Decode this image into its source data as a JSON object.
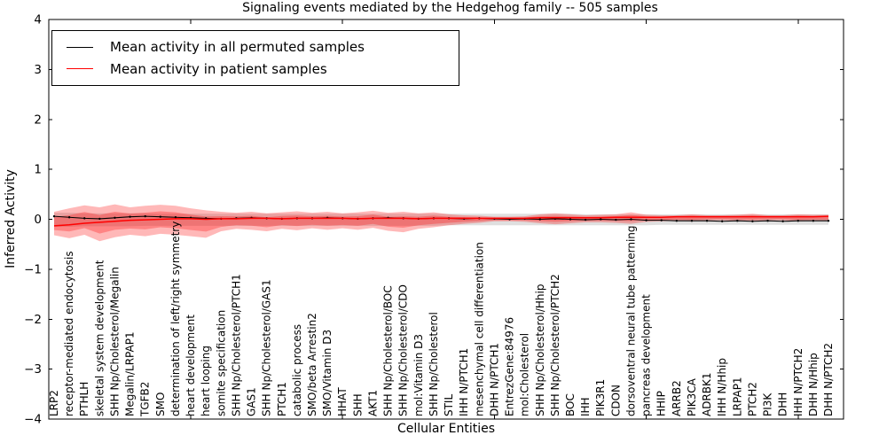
{
  "window": {
    "title": "Signaling events mediated by the Hedgehog family -- 505 samples"
  },
  "chart_data": {
    "type": "line",
    "title": "Signaling events mediated by the Hedgehog family -- 505 samples",
    "xlabel": "Cellular Entities",
    "ylabel": "Inferred Activity",
    "ylim": [
      -4,
      4
    ],
    "yticks": [
      4,
      3,
      2,
      1,
      0,
      -1,
      -2,
      -3,
      -4
    ],
    "xtick_indices": [
      9,
      19,
      29,
      39,
      49
    ],
    "grid": false,
    "legend_position": "upper left",
    "categories": [
      "LRP2",
      "receptor-mediated endocytosis",
      "PTHLH",
      "skeletal system development",
      "SHH Np/Cholesterol/Megalin",
      "Megalin/LRPAP1",
      "TGFB2",
      "SMO",
      "determination of left/right symmetry",
      "heart development",
      "heart looping",
      "somite specification",
      "SHH Np/Cholesterol/PTCH1",
      "GAS1",
      "SHH Np/Cholesterol/GAS1",
      "PTCH1",
      "catabolic process",
      "SMO/beta Arrestin2",
      "SMO/Vitamin D3",
      "HHAT",
      "SHH",
      "AKT1",
      "SHH Np/Cholesterol/BOC",
      "SHH Np/Cholesterol/CDO",
      "mol:Vitamin D3",
      "SHH Np/Cholesterol",
      "STIL",
      "IHH N/PTCH1",
      "mesenchymal cell differentiation",
      "DHH N/PTCH1",
      "EntrezGene:84976",
      "mol:Cholesterol",
      "SHH Np/Cholesterol/Hhip",
      "SHH Np/Cholesterol/PTCH2",
      "BOC",
      "IHH",
      "PIK3R1",
      "CDON",
      "dorsoventral neural tube patterning",
      "pancreas development",
      "HHIP",
      "ARRB2",
      "PIK3CA",
      "ADRBK1",
      "IHH N/Hhip",
      "LRPAP1",
      "PTCH2",
      "PI3K",
      "DHH",
      "IHH N/PTCH2",
      "DHH N/Hhip",
      "DHH N/PTCH2"
    ],
    "series": [
      {
        "id": "permuted-mean-line",
        "name": "Mean activity in all permuted samples",
        "color": "#000000",
        "marker": "dot",
        "values": [
          0.06,
          0.04,
          0.02,
          0.01,
          0.03,
          0.05,
          0.06,
          0.05,
          0.04,
          0.03,
          0.02,
          0.01,
          0.02,
          0.03,
          0.02,
          0.01,
          0.02,
          0.02,
          0.03,
          0.02,
          0.01,
          0.02,
          0.03,
          0.02,
          0.01,
          0.02,
          0.02,
          0.01,
          0.02,
          0.01,
          0.0,
          0.01,
          0.0,
          0.01,
          0.0,
          -0.01,
          0.0,
          -0.01,
          0.0,
          -0.02,
          -0.02,
          -0.03,
          -0.03,
          -0.03,
          -0.04,
          -0.03,
          -0.04,
          -0.03,
          -0.04,
          -0.03,
          -0.03,
          -0.03
        ]
      },
      {
        "id": "patient-mean-line",
        "name": "Mean activity in patient samples",
        "color": "#ff0000",
        "marker": null,
        "values": [
          -0.13,
          -0.11,
          -0.08,
          -0.06,
          -0.04,
          -0.02,
          -0.01,
          0.0,
          0.01,
          0.01,
          0.0,
          0.01,
          0.01,
          0.02,
          0.02,
          0.01,
          0.02,
          0.02,
          0.02,
          0.02,
          0.01,
          0.02,
          0.02,
          0.02,
          0.01,
          0.02,
          0.02,
          0.02,
          0.02,
          0.02,
          0.02,
          0.02,
          0.03,
          0.03,
          0.03,
          0.03,
          0.03,
          0.04,
          0.04,
          0.04,
          0.04,
          0.05,
          0.05,
          0.05,
          0.05,
          0.05,
          0.05,
          0.05,
          0.05,
          0.05,
          0.05,
          0.06
        ]
      }
    ],
    "bands": [
      {
        "name": "permuted-std-band",
        "color": "#808080",
        "alpha": 0.25,
        "layers": [
          1
        ],
        "upper": [
          0.13,
          0.13,
          0.12,
          0.12,
          0.12,
          0.12,
          0.12,
          0.11,
          0.11,
          0.11,
          0.11,
          0.11,
          0.11,
          0.11,
          0.11,
          0.11,
          0.11,
          0.11,
          0.11,
          0.11,
          0.11,
          0.11,
          0.11,
          0.11,
          0.11,
          0.11,
          0.11,
          0.11,
          0.11,
          0.11,
          0.11,
          0.11,
          0.11,
          0.11,
          0.11,
          0.1,
          0.1,
          0.1,
          0.1,
          0.1,
          0.1,
          0.1,
          0.1,
          0.1,
          0.1,
          0.1,
          0.1,
          0.1,
          0.1,
          0.1,
          0.1,
          0.1
        ],
        "lower": [
          -0.15,
          -0.15,
          -0.14,
          -0.14,
          -0.14,
          -0.14,
          -0.13,
          -0.13,
          -0.13,
          -0.13,
          -0.13,
          -0.13,
          -0.13,
          -0.13,
          -0.13,
          -0.13,
          -0.13,
          -0.13,
          -0.13,
          -0.13,
          -0.13,
          -0.13,
          -0.13,
          -0.13,
          -0.13,
          -0.13,
          -0.12,
          -0.12,
          -0.12,
          -0.12,
          -0.12,
          -0.12,
          -0.12,
          -0.12,
          -0.12,
          -0.12,
          -0.12,
          -0.12,
          -0.12,
          -0.12,
          -0.11,
          -0.11,
          -0.11,
          -0.11,
          -0.11,
          -0.11,
          -0.11,
          -0.11,
          -0.11,
          -0.11,
          -0.11,
          -0.11
        ]
      },
      {
        "name": "patient-std-band",
        "color": "#ff0000",
        "alpha": 0.28,
        "layers": [
          1,
          0.55
        ],
        "upper": [
          0.15,
          0.22,
          0.28,
          0.24,
          0.3,
          0.24,
          0.27,
          0.29,
          0.27,
          0.22,
          0.18,
          0.15,
          0.13,
          0.15,
          0.12,
          0.14,
          0.16,
          0.13,
          0.15,
          0.12,
          0.14,
          0.17,
          0.13,
          0.15,
          0.12,
          0.14,
          0.1,
          0.08,
          0.07,
          0.05,
          0.05,
          0.06,
          0.1,
          0.12,
          0.1,
          0.08,
          0.09,
          0.1,
          0.14,
          0.09,
          0.08,
          0.08,
          0.1,
          0.08,
          0.08,
          0.09,
          0.11,
          0.08,
          0.08,
          0.1,
          0.09,
          0.09
        ],
        "lower": [
          -0.32,
          -0.38,
          -0.31,
          -0.44,
          -0.36,
          -0.31,
          -0.34,
          -0.29,
          -0.31,
          -0.34,
          -0.37,
          -0.24,
          -0.19,
          -0.21,
          -0.24,
          -0.19,
          -0.22,
          -0.18,
          -0.21,
          -0.18,
          -0.21,
          -0.17,
          -0.23,
          -0.26,
          -0.19,
          -0.16,
          -0.12,
          -0.09,
          -0.07,
          -0.04,
          -0.04,
          -0.05,
          -0.08,
          -0.1,
          -0.08,
          -0.06,
          -0.06,
          -0.07,
          -0.09,
          -0.05,
          -0.04,
          -0.03,
          -0.04,
          -0.02,
          -0.02,
          -0.03,
          -0.04,
          -0.02,
          -0.02,
          -0.04,
          -0.03,
          -0.03
        ]
      }
    ]
  }
}
